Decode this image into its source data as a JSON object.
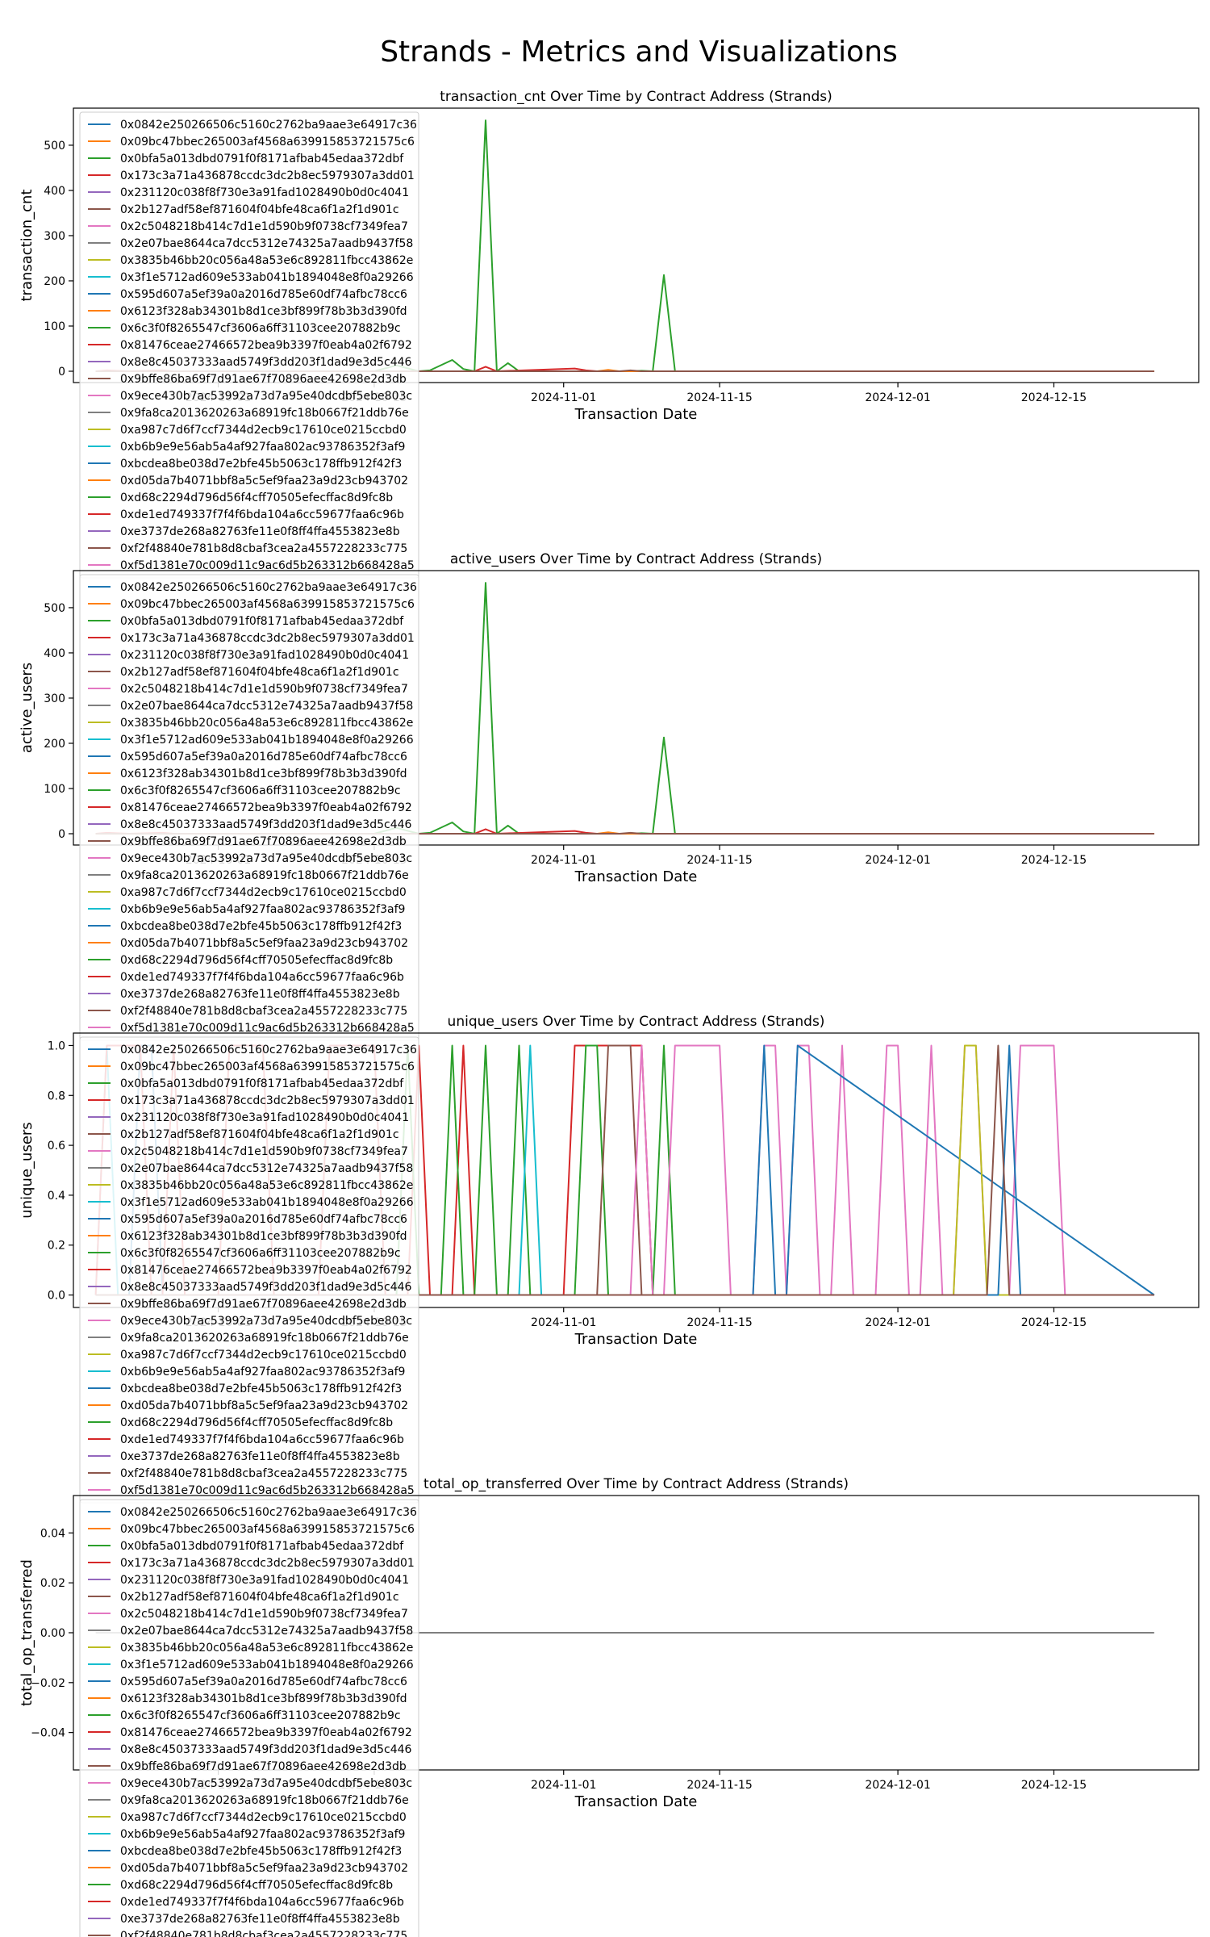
{
  "page_title": "Strands - Metrics and Visualizations",
  "legend_entries": [
    "0x0842e250266506c5160c2762ba9aae3e64917c36",
    "0x09bc47bbec265003af4568a639915853721575c6",
    "0x0bfa5a013dbd0791f0f8171afbab45edaa372dbf",
    "0x173c3a71a436878ccdc3dc2b8ec5979307a3dd01",
    "0x231120c038f8f730e3a91fad1028490b0d0c4041",
    "0x2b127adf58ef871604f04bfe48ca6f1a2f1d901c",
    "0x2c5048218b414c7d1e1d590b9f0738cf7349fea7",
    "0x2e07bae8644ca7dcc5312e74325a7aadb9437f58",
    "0x3835b46bb20c056a48a53e6c892811fbcc43862e",
    "0x3f1e5712ad609e533ab041b1894048e8f0a29266",
    "0x595d607a5ef39a0a2016d785e60df74afbc78cc6",
    "0x6123f328ab34301b8d1ce3bf899f78b3b3d390fd",
    "0x6c3f0f8265547cf3606a6ff31103cee207882b9c",
    "0x81476ceae27466572bea9b3397f0eab4a02f6792",
    "0x8e8c45037333aad5749f3dd203f1dad9e3d5c446",
    "0x9bffe86ba69f7d91ae67f70896aee42698e2d3db",
    "0x9ece430b7ac53992a73d7a95e40dcdbf5ebe803c",
    "0x9fa8ca2013620263a68919fc18b0667f21ddb76e",
    "0xa987c7d6f7ccf7344d2ecb9c17610ce0215ccbd0",
    "0xb6b9e9e56ab5a4af927faa802ac93786352f3af9",
    "0xbcdea8be038d7e2bfe45b5063c178ffb912f42f3",
    "0xd05da7b4071bbf8a5c5ef9faa23a9d23cb943702",
    "0xd68c2294d796d56f4cff70505efecffac8d9fc8b",
    "0xde1ed749337f7f4f6bda104a6cc59677faa6c96b",
    "0xe3737de268a82763fe11e0f8ff4ffa4553823e8b",
    "0xf2f48840e781b8d8cbaf3cea2a4557228233c775",
    "0xf5d1381e70c009d11c9ac6d5b263312b668428a5"
  ],
  "series_colors": [
    "#1f77b4",
    "#ff7f0e",
    "#2ca02c",
    "#d62728",
    "#9467bd",
    "#8c564b",
    "#e377c2",
    "#7f7f7f",
    "#bcbd22",
    "#17becf"
  ],
  "chart_data": [
    {
      "type": "line",
      "title": "transaction_cnt Over Time by Contract Address (Strands)",
      "xlabel": "Transaction Date",
      "ylabel": "transaction_cnt",
      "x_ticks": [
        "2024-10-01",
        "2024-10-15",
        "2024-11-01",
        "2024-11-15",
        "2024-12-01",
        "2024-12-15"
      ],
      "y_ticks": [
        "0",
        "100",
        "200",
        "300",
        "400",
        "500"
      ],
      "xlim": [
        "2024-09-18",
        "2024-12-28"
      ],
      "ylim": [
        -25,
        582
      ],
      "legend": "upper-left, overflowing below the axes",
      "grid": false,
      "series": [
        {
          "legend_index": 2,
          "x": [
            "2024-09-20",
            "2024-10-15",
            "2024-10-17",
            "2024-10-19",
            "2024-10-20",
            "2024-10-22",
            "2024-10-23",
            "2024-10-24",
            "2024-10-25",
            "2024-10-26",
            "2024-10-27",
            "2024-10-28",
            "2024-11-05",
            "2024-11-07",
            "2024-11-08",
            "2024-11-09",
            "2024-11-10",
            "2024-11-11",
            "2024-11-12",
            "2024-12-24"
          ],
          "y": [
            0,
            0,
            13,
            0,
            2,
            25,
            5,
            0,
            555,
            0,
            18,
            0,
            0,
            0,
            1,
            0,
            213,
            0,
            0,
            0
          ]
        },
        {
          "legend_index": 3,
          "x": [
            "2024-09-20",
            "2024-09-21",
            "2024-09-23",
            "2024-09-26",
            "2024-09-27",
            "2024-09-30",
            "2024-10-06",
            "2024-10-24",
            "2024-10-25",
            "2024-10-26",
            "2024-11-02",
            "2024-11-03",
            "2024-11-04",
            "2024-12-24"
          ],
          "y": [
            0,
            2,
            0,
            2,
            0,
            0,
            0,
            0,
            10,
            0,
            6,
            2,
            0,
            0
          ]
        },
        {
          "legend_index": 1,
          "x": [
            "2024-09-20",
            "2024-11-04",
            "2024-11-05",
            "2024-11-06",
            "2024-12-24"
          ],
          "y": [
            0,
            0,
            3,
            0,
            0
          ]
        },
        {
          "legend_index": 5,
          "x": [
            "2024-09-20",
            "2024-11-06",
            "2024-11-07",
            "2024-11-08",
            "2024-12-24"
          ],
          "y": [
            0,
            0,
            2,
            0,
            0
          ]
        }
      ]
    },
    {
      "type": "line",
      "title": "active_users Over Time by Contract Address (Strands)",
      "xlabel": "Transaction Date",
      "ylabel": "active_users",
      "x_ticks": [
        "2024-10-01",
        "2024-10-15",
        "2024-11-01",
        "2024-11-15",
        "2024-12-01",
        "2024-12-15"
      ],
      "y_ticks": [
        "0",
        "100",
        "200",
        "300",
        "400",
        "500"
      ],
      "xlim": [
        "2024-09-18",
        "2024-12-28"
      ],
      "ylim": [
        -25,
        582
      ],
      "legend": "upper-left, overflowing below the axes",
      "grid": false,
      "series": [
        {
          "legend_index": 2,
          "x": [
            "2024-09-20",
            "2024-10-15",
            "2024-10-17",
            "2024-10-19",
            "2024-10-20",
            "2024-10-22",
            "2024-10-23",
            "2024-10-24",
            "2024-10-25",
            "2024-10-26",
            "2024-10-27",
            "2024-10-28",
            "2024-11-05",
            "2024-11-07",
            "2024-11-08",
            "2024-11-09",
            "2024-11-10",
            "2024-11-11",
            "2024-11-12",
            "2024-12-24"
          ],
          "y": [
            0,
            0,
            13,
            0,
            2,
            25,
            5,
            0,
            555,
            0,
            18,
            0,
            0,
            0,
            1,
            0,
            213,
            0,
            0,
            0
          ]
        },
        {
          "legend_index": 3,
          "x": [
            "2024-09-20",
            "2024-09-21",
            "2024-09-23",
            "2024-09-26",
            "2024-09-27",
            "2024-09-30",
            "2024-10-06",
            "2024-10-24",
            "2024-10-25",
            "2024-10-26",
            "2024-11-02",
            "2024-11-03",
            "2024-11-04",
            "2024-12-24"
          ],
          "y": [
            0,
            2,
            0,
            2,
            0,
            0,
            0,
            0,
            10,
            0,
            6,
            2,
            0,
            0
          ]
        },
        {
          "legend_index": 1,
          "x": [
            "2024-09-20",
            "2024-11-04",
            "2024-11-05",
            "2024-11-06",
            "2024-12-24"
          ],
          "y": [
            0,
            0,
            3,
            0,
            0
          ]
        },
        {
          "legend_index": 5,
          "x": [
            "2024-09-20",
            "2024-11-06",
            "2024-11-07",
            "2024-11-08",
            "2024-12-24"
          ],
          "y": [
            0,
            0,
            2,
            0,
            0
          ]
        }
      ]
    },
    {
      "type": "line",
      "title": "unique_users Over Time by Contract Address (Strands)",
      "xlabel": "Transaction Date",
      "ylabel": "unique_users",
      "x_ticks": [
        "2024-10-01",
        "2024-10-15",
        "2024-11-01",
        "2024-11-15",
        "2024-12-01",
        "2024-12-15"
      ],
      "y_ticks": [
        "0.0",
        "0.2",
        "0.4",
        "0.6",
        "0.8",
        "1.0"
      ],
      "xlim": [
        "2024-09-18",
        "2024-12-28"
      ],
      "ylim": [
        -0.05,
        1.05
      ],
      "legend": "upper-left, overflowing below the axes",
      "grid": false,
      "series": [
        {
          "legend_index": 9,
          "x": [
            "2024-09-20",
            "2024-09-21",
            "2024-09-22",
            "2024-09-23",
            "2024-12-24"
          ],
          "y": [
            0,
            1,
            0,
            0,
            0
          ]
        },
        {
          "legend_index": 0,
          "x": [
            "2024-09-20",
            "2024-09-23",
            "2024-09-24",
            "2024-09-25",
            "2024-09-26",
            "2024-12-24"
          ],
          "y": [
            0,
            0,
            1,
            1,
            0,
            0
          ]
        },
        {
          "legend_index": 3,
          "x": [
            "2024-09-20",
            "2024-09-21",
            "2024-09-22",
            "2024-09-23",
            "2024-09-24",
            "2024-09-25",
            "2024-09-26",
            "2024-09-27",
            "2024-09-28",
            "2024-10-01",
            "2024-10-02",
            "2024-10-03",
            "2024-10-04",
            "2024-10-05",
            "2024-10-06",
            "2024-10-07",
            "2024-10-08",
            "2024-10-09",
            "2024-10-10",
            "2024-10-11",
            "2024-10-12",
            "2024-10-13",
            "2024-10-14",
            "2024-10-15",
            "2024-10-16",
            "2024-10-17",
            "2024-10-18",
            "2024-10-19",
            "2024-10-20",
            "2024-10-21",
            "2024-10-22",
            "2024-10-23",
            "2024-10-24",
            "2024-10-25",
            "2024-10-26",
            "2024-10-27",
            "2024-10-28",
            "2024-10-29",
            "2024-10-30",
            "2024-10-31",
            "2024-11-01",
            "2024-11-02",
            "2024-11-03",
            "2024-11-04",
            "2024-11-05",
            "2024-11-06",
            "2024-11-07",
            "2024-11-08",
            "2024-11-09",
            "2024-11-10",
            "2024-11-11",
            "2024-11-12",
            "2024-11-13",
            "2024-11-14",
            "2024-11-15",
            "2024-11-16",
            "2024-11-17",
            "2024-11-18",
            "2024-11-19",
            "2024-11-20",
            "2024-11-21",
            "2024-11-22",
            "2024-11-23",
            "2024-11-24",
            "2024-11-25",
            "2024-11-26",
            "2024-11-27",
            "2024-11-28",
            "2024-11-29",
            "2024-11-30",
            "2024-12-01",
            "2024-12-02",
            "2024-12-03",
            "2024-12-04",
            "2024-12-05",
            "2024-12-06",
            "2024-12-07",
            "2024-12-08",
            "2024-12-09",
            "2024-12-10",
            "2024-12-11",
            "2024-12-12",
            "2024-12-13",
            "2024-12-14",
            "2024-12-15",
            "2024-12-16",
            "2024-12-17",
            "2024-12-18",
            "2024-12-19",
            "2024-12-20",
            "2024-12-21",
            "2024-12-22",
            "2024-12-23",
            "2024-12-24"
          ],
          "y": [
            0,
            1,
            1,
            1,
            1,
            0,
            0,
            1,
            0,
            0,
            1,
            1,
            1,
            1,
            0,
            0,
            0,
            0,
            0,
            1,
            1,
            1,
            1,
            1,
            0,
            0,
            0,
            1,
            0,
            0,
            0,
            1,
            0,
            0,
            0,
            0,
            0,
            0,
            0,
            0,
            0,
            1,
            1,
            1,
            1,
            1,
            1,
            1,
            0,
            0,
            0,
            0,
            0,
            0,
            0,
            0,
            0,
            0,
            0,
            0,
            0,
            0,
            0,
            0,
            0,
            0,
            0,
            0,
            0,
            0,
            0,
            0,
            0,
            0,
            0,
            0,
            0,
            0,
            0,
            0,
            0,
            0,
            0,
            0,
            0,
            0,
            0,
            0,
            0,
            0,
            0,
            0,
            0,
            0
          ]
        },
        {
          "legend_index": 2,
          "x": [
            "2024-09-20",
            "2024-10-17",
            "2024-10-18",
            "2024-10-19",
            "2024-10-21",
            "2024-10-22",
            "2024-10-23",
            "2024-10-24",
            "2024-10-25",
            "2024-10-26",
            "2024-10-27",
            "2024-10-28",
            "2024-10-29",
            "2024-11-02",
            "2024-11-03",
            "2024-11-04",
            "2024-11-05",
            "2024-11-09",
            "2024-11-10",
            "2024-11-11",
            "2024-12-24"
          ],
          "y": [
            0,
            0,
            1,
            0,
            0,
            1,
            0,
            0,
            1,
            0,
            0,
            1,
            0,
            0,
            1,
            1,
            0,
            0,
            1,
            0,
            0
          ]
        },
        {
          "legend_index": 9,
          "x": [
            "2024-09-20",
            "2024-10-28",
            "2024-10-29",
            "2024-10-30",
            "2024-12-24"
          ],
          "y": [
            0,
            0,
            1,
            0,
            0
          ]
        },
        {
          "legend_index": 5,
          "x": [
            "2024-09-20",
            "2024-11-04",
            "2024-11-05",
            "2024-11-06",
            "2024-11-07",
            "2024-11-08",
            "2024-12-24"
          ],
          "y": [
            0,
            0,
            1,
            1,
            1,
            0,
            0
          ]
        },
        {
          "legend_index": 6,
          "x": [
            "2024-09-20",
            "2024-11-07",
            "2024-11-08",
            "2024-11-09",
            "2024-11-10",
            "2024-11-11",
            "2024-11-12",
            "2024-11-13",
            "2024-11-14",
            "2024-11-15",
            "2024-11-16",
            "2024-11-17",
            "2024-11-18",
            "2024-11-19",
            "2024-11-20",
            "2024-11-21",
            "2024-11-22",
            "2024-11-23",
            "2024-11-24",
            "2024-11-25",
            "2024-11-26",
            "2024-11-27",
            "2024-11-28",
            "2024-11-29",
            "2024-11-30",
            "2024-12-01",
            "2024-12-02",
            "2024-12-03",
            "2024-12-04",
            "2024-12-05",
            "2024-12-06",
            "2024-12-07",
            "2024-12-08",
            "2024-12-09",
            "2024-12-10",
            "2024-12-11",
            "2024-12-12",
            "2024-12-13",
            "2024-12-14",
            "2024-12-15",
            "2024-12-16",
            "2024-12-17",
            "2024-12-18",
            "2024-12-19",
            "2024-12-20",
            "2024-12-21",
            "2024-12-22",
            "2024-12-23",
            "2024-12-24"
          ],
          "y": [
            0,
            0,
            1,
            0,
            0,
            1,
            1,
            1,
            1,
            1,
            0,
            0,
            0,
            1,
            1,
            0,
            1,
            1,
            0,
            0,
            1,
            0,
            0,
            0,
            1,
            1,
            0,
            0,
            1,
            0,
            0,
            1,
            1,
            0,
            0,
            0,
            1,
            1,
            1,
            1,
            0,
            0,
            0,
            0,
            0,
            0,
            0,
            0,
            0
          ]
        },
        {
          "legend_index": 10,
          "x": [
            "2024-09-20",
            "2024-11-18",
            "2024-11-19",
            "2024-11-20",
            "2024-11-21",
            "2024-11-22",
            "2024-12-24"
          ],
          "y": [
            0,
            0,
            1,
            0,
            0,
            1,
            0
          ]
        },
        {
          "legend_index": 8,
          "x": [
            "2024-09-20",
            "2024-12-06",
            "2024-12-07",
            "2024-12-08",
            "2024-12-09",
            "2024-12-24"
          ],
          "y": [
            0,
            0,
            1,
            1,
            0,
            0
          ]
        },
        {
          "legend_index": 0,
          "x": [
            "2024-09-20",
            "2024-12-10",
            "2024-12-11",
            "2024-12-12",
            "2024-12-24"
          ],
          "y": [
            0,
            0,
            1,
            0,
            0
          ]
        },
        {
          "legend_index": 5,
          "x": [
            "2024-09-20",
            "2024-12-09",
            "2024-12-10",
            "2024-12-11",
            "2024-12-24"
          ],
          "y": [
            0,
            0,
            1,
            0,
            0
          ]
        }
      ]
    },
    {
      "type": "line",
      "title": "total_op_transferred Over Time by Contract Address (Strands)",
      "xlabel": "Transaction Date",
      "ylabel": "total_op_transferred",
      "x_ticks": [
        "2024-10-01",
        "2024-10-15",
        "2024-11-01",
        "2024-11-15",
        "2024-12-01",
        "2024-12-15"
      ],
      "y_ticks": [
        "−0.04",
        "−0.02",
        "0.00",
        "0.02",
        "0.04"
      ],
      "xlim": [
        "2024-09-18",
        "2024-12-28"
      ],
      "ylim": [
        -0.055,
        0.055
      ],
      "legend": "upper-left, overflowing below the axes",
      "grid": false,
      "series": [
        {
          "legend_index": 7,
          "x": [
            "2024-09-20",
            "2024-12-24"
          ],
          "y": [
            0,
            0
          ]
        }
      ]
    }
  ]
}
